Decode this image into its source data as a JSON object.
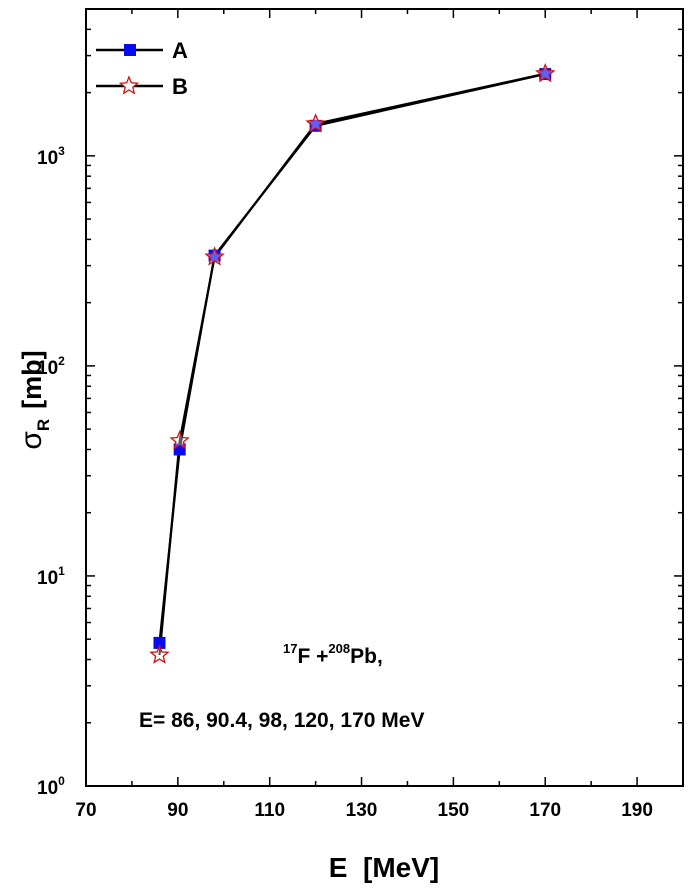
{
  "chart_data": {
    "type": "line",
    "scale_y": "log",
    "xlabel": "E  [MeV]",
    "ylabel": {
      "symbol": "σ",
      "subscript": "R",
      "unit": "[mb]"
    },
    "xlim": [
      70,
      200
    ],
    "ylim": [
      1,
      5000
    ],
    "x_ticks": [
      70,
      90,
      110,
      130,
      150,
      170,
      190
    ],
    "x_tick_labels": [
      "70",
      "90",
      "110",
      "130",
      "150",
      "170",
      "190"
    ],
    "y_ticks": [
      {
        "value": 1,
        "base": "10",
        "exp": "0"
      },
      {
        "value": 10,
        "base": "10",
        "exp": "1"
      },
      {
        "value": 100,
        "base": "10",
        "exp": "2"
      },
      {
        "value": 1000,
        "base": "10",
        "exp": "3"
      }
    ],
    "series": [
      {
        "name": "A",
        "marker": "square",
        "color": "#0a0af0",
        "x": [
          86,
          90.4,
          98,
          120,
          170
        ],
        "y": [
          4.8,
          40,
          335,
          1390,
          2450
        ]
      },
      {
        "name": "B",
        "marker": "star",
        "color": "#d01010",
        "x": [
          86,
          90.4,
          98,
          120,
          170
        ],
        "y": [
          4.2,
          44,
          330,
          1420,
          2460
        ]
      }
    ],
    "legend_position": "top-left",
    "annotations": {
      "reaction": {
        "pre1": "17",
        "t1": "F +",
        "pre2": "208",
        "t2": "Pb,"
      },
      "energies": "E= 86, 90.4, 98, 120, 170 MeV"
    }
  }
}
